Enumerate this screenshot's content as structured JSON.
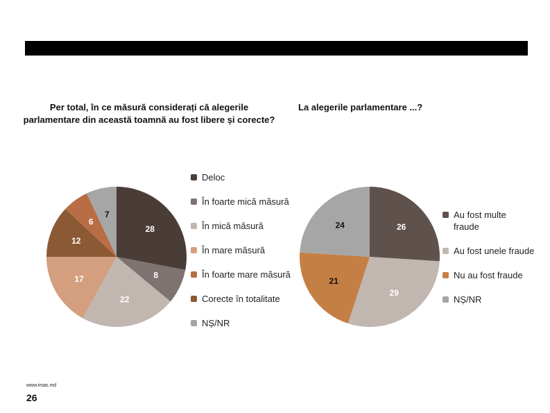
{
  "chart_data": [
    {
      "type": "pie",
      "title": "Per total, în ce măsură considerați că alegerile parlamentare din această toamnă au fost libere și corecte?",
      "categories": [
        "Deloc",
        "În foarte mică măsură",
        "În mică măsură",
        "În mare măsură",
        "În foarte mare măsură",
        "Corecte în totalitate",
        "NȘ/NR"
      ],
      "values": [
        28,
        8,
        22,
        17,
        6,
        12,
        7
      ],
      "slice_order": [
        0,
        1,
        2,
        3,
        5,
        4,
        6
      ],
      "colors": [
        "#4a3d37",
        "#7e7370",
        "#c2b7b0",
        "#d39f7f",
        "#b96d44",
        "#8b5a34",
        "#a6a6a6"
      ],
      "label_colors": [
        "#ffffff",
        "#ffffff",
        "#ffffff",
        "#ffffff",
        "#ffffff",
        "#ffffff",
        "#111111"
      ],
      "legend_position": "right"
    },
    {
      "type": "pie",
      "title": "La alegerile parlamentare ...?",
      "categories": [
        "Au fost multe fraude",
        "Au fost unele fraude",
        "Nu au fost fraude",
        "NȘ/NR"
      ],
      "values": [
        26,
        29,
        21,
        24
      ],
      "slice_order": [
        0,
        1,
        2,
        3
      ],
      "colors": [
        "#5f514c",
        "#c2b7b0",
        "#c47f45",
        "#a6a6a6"
      ],
      "label_colors": [
        "#ffffff",
        "#ffffff",
        "#111111",
        "#111111"
      ],
      "legend_position": "right"
    }
  ],
  "footer": {
    "url": "www.imas.md",
    "page_number": "26"
  }
}
